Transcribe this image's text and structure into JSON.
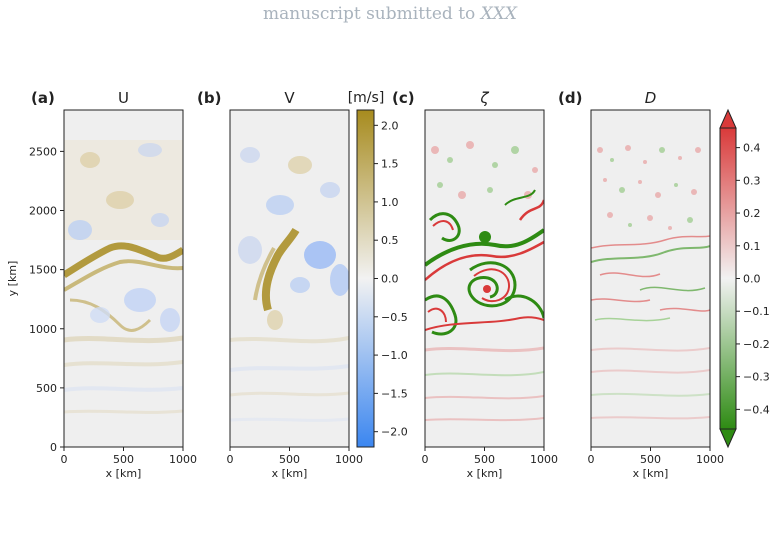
{
  "header": {
    "prefix": "manuscript submitted to",
    "journal": "XXX"
  },
  "chart_data": [
    {
      "type": "heatmap",
      "panel": "(a)",
      "title": "U",
      "xlabel": "x [km]",
      "ylabel": "y [km]",
      "xlim": [
        0,
        1000
      ],
      "ylim": [
        0,
        2850
      ],
      "xticks": [
        0,
        500,
        1000
      ],
      "yticks": [
        0,
        500,
        1000,
        1500,
        2000,
        2500
      ],
      "colorscale": "blue-white-olive",
      "colorbar": "velocity",
      "features": "strong positive (olive) meandering jet near y = 1500-1700 km; weak negative (blue) eddies 1000-2000 km; faint horizontal banding below 1000 km"
    },
    {
      "type": "heatmap",
      "panel": "(b)",
      "title": "V",
      "xlabel": "x [km]",
      "xlim": [
        0,
        1000
      ],
      "ylim": [
        0,
        2850
      ],
      "xticks": [
        0,
        500,
        1000
      ],
      "colorscale": "blue-white-olive",
      "colorbar": "velocity",
      "features": "positive (olive) filament near x = 300 km, y = 1300-1700 km; negative (blue) eddies near x = 500-900 km, y = 1400-1800 km"
    },
    {
      "type": "heatmap",
      "panel": "(c)",
      "title": "ζ",
      "xlabel": "x [km]",
      "xlim": [
        0,
        1000
      ],
      "ylim": [
        0,
        2850
      ],
      "xticks": [
        0,
        500,
        1000
      ],
      "colorscale": "green-white-red",
      "colorbar": "normalized",
      "features": "intense turbulent vorticity filaments between y = 1000 and 2100 km; small red/green eddies above 2100 km"
    },
    {
      "type": "heatmap",
      "panel": "(d)",
      "title": "D",
      "xlabel": "x [km]",
      "xlim": [
        0,
        1000
      ],
      "ylim": [
        0,
        2850
      ],
      "xticks": [
        0,
        500,
        1000
      ],
      "colorscale": "green-white-red",
      "colorbar": "normalized",
      "features": "small-scale divergence speckle, strongest 1100-2600 km; faint banding below"
    }
  ],
  "colorbars": {
    "velocity": {
      "unit": "[m/s]",
      "min": -2.2,
      "max": 2.2,
      "ticks": [
        -2.0,
        -1.5,
        -1.0,
        -0.5,
        0.0,
        0.5,
        1.0,
        1.5,
        2.0
      ],
      "tick_labels": [
        "−2.0",
        "−1.5",
        "−1.0",
        "−0.5",
        "0.0",
        "0.5",
        "1.0",
        "1.5",
        "2.0"
      ],
      "colors": {
        "low": "#3b86f0",
        "mid": "#f2f2f2",
        "high": "#a78b1e"
      }
    },
    "normalized": {
      "min": -0.46,
      "max": 0.46,
      "extend": "both",
      "ticks": [
        -0.4,
        -0.3,
        -0.2,
        -0.1,
        0.0,
        0.1,
        0.2,
        0.3,
        0.4
      ],
      "tick_labels": [
        "−0.4",
        "−0.3",
        "−0.2",
        "−0.1",
        "0.0",
        "0.1",
        "0.2",
        "0.3",
        "0.4"
      ],
      "colors": {
        "low": "#2e8b13",
        "mid": "#f2f2f2",
        "high": "#d93a3a"
      }
    }
  }
}
